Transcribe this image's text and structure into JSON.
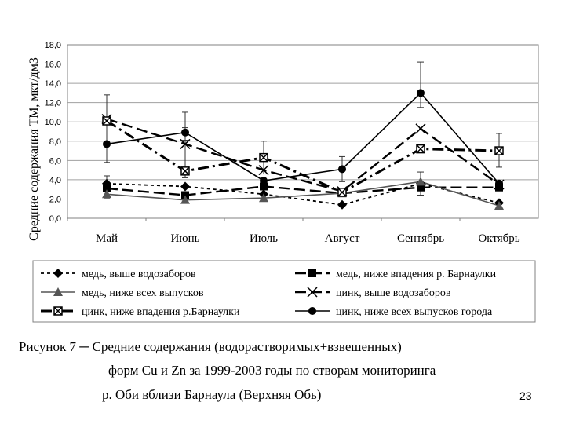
{
  "chart_data": {
    "type": "line",
    "ylabel": "Средние содержания ТМ, мкт/дм3",
    "xlabel": "",
    "ylim": [
      0,
      18
    ],
    "y_ticks": [
      "0,0",
      "2,0",
      "4,0",
      "6,0",
      "8,0",
      "10,0",
      "12,0",
      "14,0",
      "16,0",
      "18,0"
    ],
    "categories": [
      "Май",
      "Июнь",
      "Июль",
      "Август",
      "Сентябрь",
      "Октябрь"
    ],
    "gridlines": true,
    "legend_position": "bottom",
    "series": [
      {
        "name": "медь, выше водозаборов",
        "values": [
          3.6,
          3.3,
          2.5,
          1.4,
          3.6,
          1.6
        ],
        "marker": "diamond",
        "dash": "short-dash",
        "color": "#000000"
      },
      {
        "name": "медь, ниже впадения р. Барнаулки",
        "values": [
          3.1,
          2.4,
          3.3,
          2.6,
          3.2,
          3.2
        ],
        "marker": "square",
        "dash": "long-dash",
        "color": "#000000"
      },
      {
        "name": "медь, ниже всех выпусков",
        "values": [
          2.5,
          1.9,
          2.1,
          2.6,
          3.8,
          1.3
        ],
        "marker": "triangle",
        "dash": "solid",
        "color": "#555555"
      },
      {
        "name": "цинк, выше водозаборов",
        "values": [
          10.3,
          7.7,
          5.0,
          2.8,
          9.3,
          3.5
        ],
        "marker": "x",
        "dash": "long-dash",
        "color": "#000000"
      },
      {
        "name": "цинк, ниже впадения р.Барнаулки",
        "values": [
          10.1,
          4.9,
          6.3,
          2.7,
          7.2,
          7.0
        ],
        "marker": "xbox",
        "dash": "dash-dot",
        "color": "#000000"
      },
      {
        "name": "цинк, ниже всех выпусков города",
        "values": [
          7.7,
          8.9,
          3.9,
          5.1,
          13.0,
          3.6
        ],
        "marker": "circle",
        "dash": "solid",
        "color": "#000000"
      }
    ],
    "error_bars": [
      {
        "series": "цинк, ниже всех выпусков города",
        "category": "Май",
        "low": 5.8,
        "high": 12.8
      },
      {
        "series": "цинк, ниже всех выпусков города",
        "category": "Июнь",
        "low": 8.1,
        "high": 11.0
      },
      {
        "series": "цинк, ниже впадения р.Барнаулки",
        "category": "Июль",
        "low": 4.6,
        "high": 8.0
      },
      {
        "series": "цинк, ниже всех выпусков города",
        "category": "Август",
        "low": 3.8,
        "high": 6.4
      },
      {
        "series": "цинк, ниже всех выпусков города",
        "category": "Сентябрь",
        "low": 11.5,
        "high": 16.2
      },
      {
        "series": "цинк, ниже впадения р.Барнаулки",
        "category": "Октябрь",
        "low": 5.3,
        "high": 8.8
      },
      {
        "series": "медь, выше водозаборов",
        "category": "Май",
        "low": 2.1,
        "high": 4.4
      },
      {
        "series": "цинк, выше водозаборов",
        "category": "Июнь",
        "low": 4.2,
        "high": 9.4
      },
      {
        "series": "медь, ниже всех выпусков",
        "category": "Сентябрь",
        "low": 2.4,
        "high": 4.8
      }
    ]
  },
  "caption": {
    "line1": "Рисунок 7 ─ Средние содержания (водорастворимых+взвешенных)",
    "line2": "форм Cu и Zn за 1999-2003 годы по створам мониторинга",
    "line3": "р. Оби вблизи Барнаула (Верхняя Обь)"
  },
  "slide_number": "23"
}
